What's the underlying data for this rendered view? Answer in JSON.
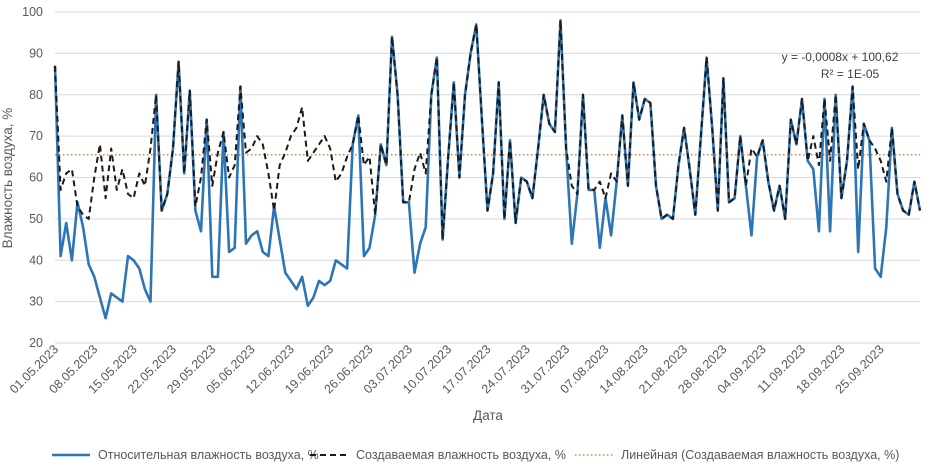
{
  "chart_data": {
    "type": "line",
    "xlabel": "Дата",
    "ylabel": "Влажность воздуха, %",
    "ylim": [
      20,
      100
    ],
    "yticks": [
      20,
      30,
      40,
      50,
      60,
      70,
      80,
      90,
      100
    ],
    "grid": "horizontal",
    "legend_position": "bottom",
    "x_tick_labels": [
      "01.05.2023",
      "08.05.2023",
      "15.05.2023",
      "22.05.2023",
      "29.05.2023",
      "05.06.2023",
      "12.06.2023",
      "19.06.2023",
      "26.06.2023",
      "03.07.2023",
      "10.07.2023",
      "17.07.2023",
      "24.07.2023",
      "31.07.2023",
      "07.08.2023",
      "14.08.2023",
      "21.08.2023",
      "28.08.2023",
      "04.09.2023",
      "11.09.2023",
      "18.09.2023",
      "25.09.2023"
    ],
    "series": [
      {
        "name": "Относительная влажность воздуха, %",
        "color": "#2E75B6",
        "style": "solid",
        "values": [
          87,
          41,
          49,
          40,
          54,
          48,
          39,
          36,
          31,
          26,
          32,
          31,
          30,
          41,
          40,
          38,
          33,
          30,
          80,
          52,
          56,
          67,
          88,
          61,
          81,
          52,
          47,
          74,
          36,
          36,
          71,
          42,
          43,
          82,
          44,
          46,
          47,
          42,
          41,
          53,
          45,
          37,
          35,
          33,
          36,
          29,
          31,
          35,
          34,
          35,
          40,
          39,
          38,
          68,
          75,
          41,
          43,
          51,
          68,
          63,
          94,
          80,
          54,
          54,
          37,
          44,
          48,
          80,
          89,
          45,
          65,
          83,
          60,
          80,
          90,
          97,
          74,
          52,
          61,
          83,
          50,
          69,
          49,
          60,
          59,
          55,
          67,
          80,
          73,
          71,
          98,
          67,
          44,
          56,
          80,
          57,
          57,
          43,
          55,
          46,
          59,
          75,
          58,
          83,
          74,
          79,
          78,
          58,
          50,
          51,
          50,
          63,
          72,
          62,
          51,
          70,
          89,
          72,
          52,
          84,
          54,
          55,
          70,
          58,
          46,
          65,
          69,
          59,
          52,
          58,
          50,
          74,
          68,
          79,
          64,
          62,
          47,
          79,
          47,
          80,
          55,
          64,
          82,
          42,
          73,
          69,
          38,
          36,
          48,
          72,
          56,
          52,
          51,
          59,
          52
        ]
      },
      {
        "name": "Создаваемая влажность воздуха, %",
        "color": "#1A1A1A",
        "style": "dashed",
        "values": [
          87,
          57,
          61,
          62,
          53,
          51,
          50,
          60,
          68,
          55,
          67,
          57,
          62,
          56,
          55,
          61,
          58,
          67,
          80,
          52,
          56,
          67,
          88,
          61,
          81,
          53,
          60,
          74,
          58,
          66,
          71,
          60,
          63,
          82,
          66,
          67,
          70,
          68,
          61,
          52,
          63,
          66,
          70,
          72,
          77,
          64,
          66,
          68,
          70,
          67,
          59,
          61,
          65,
          68,
          75,
          63,
          65,
          51,
          68,
          63,
          94,
          80,
          54,
          54,
          62,
          66,
          61,
          80,
          89,
          45,
          65,
          83,
          60,
          80,
          90,
          97,
          74,
          52,
          61,
          83,
          50,
          69,
          49,
          60,
          59,
          55,
          67,
          80,
          73,
          71,
          98,
          67,
          58,
          56,
          80,
          57,
          57,
          59,
          55,
          61,
          59,
          75,
          58,
          83,
          74,
          79,
          78,
          58,
          50,
          51,
          50,
          63,
          72,
          62,
          51,
          70,
          89,
          72,
          52,
          84,
          54,
          55,
          70,
          58,
          67,
          65,
          69,
          59,
          52,
          58,
          50,
          74,
          68,
          79,
          64,
          70,
          63,
          79,
          64,
          80,
          55,
          64,
          82,
          62,
          73,
          69,
          67,
          64,
          59,
          72,
          56,
          52,
          51,
          59,
          52
        ]
      },
      {
        "name": "Линейная (Создаваемая влажность воздуха, %)",
        "color": "#ED7D31",
        "style": "dotted",
        "type": "trendline",
        "equation": "y = -0,0008x + 100,62",
        "r_squared": "R² = 1E-05",
        "value": 65.5
      }
    ]
  }
}
